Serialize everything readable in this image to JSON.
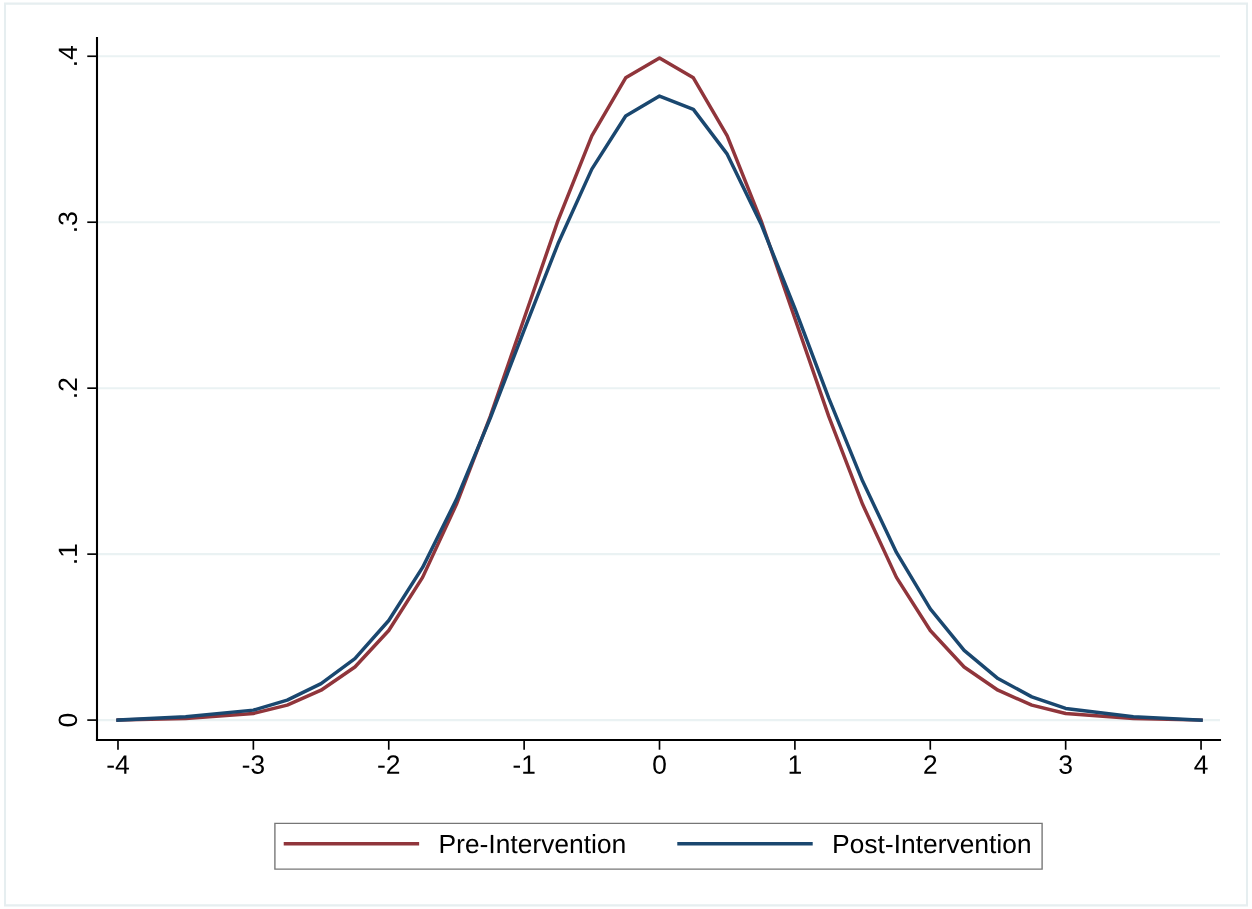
{
  "chart_data": {
    "type": "line",
    "x": [
      -4,
      -3.5,
      -3,
      -2.75,
      -2.5,
      -2.25,
      -2,
      -1.75,
      -1.5,
      -1.25,
      -1,
      -0.75,
      -0.5,
      -0.25,
      0,
      0.25,
      0.5,
      0.75,
      1,
      1.25,
      1.5,
      1.75,
      2,
      2.25,
      2.5,
      2.75,
      3,
      3.5,
      4
    ],
    "series": [
      {
        "name": "Pre-Intervention",
        "color": "#90353b",
        "values": [
          0.0,
          0.001,
          0.004,
          0.009,
          0.018,
          0.032,
          0.054,
          0.086,
          0.13,
          0.183,
          0.242,
          0.301,
          0.352,
          0.387,
          0.399,
          0.387,
          0.352,
          0.301,
          0.242,
          0.183,
          0.13,
          0.086,
          0.054,
          0.032,
          0.018,
          0.009,
          0.004,
          0.001,
          0.0
        ]
      },
      {
        "name": "Post-Intervention",
        "color": "#1a476f",
        "values": [
          0.0,
          0.002,
          0.006,
          0.012,
          0.022,
          0.037,
          0.06,
          0.092,
          0.133,
          0.182,
          0.235,
          0.287,
          0.332,
          0.364,
          0.376,
          0.368,
          0.341,
          0.299,
          0.248,
          0.194,
          0.144,
          0.101,
          0.067,
          0.042,
          0.025,
          0.014,
          0.007,
          0.002,
          0.0
        ]
      }
    ],
    "xlim": [
      -4.155,
      4.14
    ],
    "xticks": [
      -4,
      -3,
      -2,
      -1,
      0,
      1,
      2,
      3,
      4
    ],
    "ylim": [
      -0.012,
      0.411
    ],
    "yticks": [
      0,
      {
        "value": 0.1,
        "label": ".1"
      },
      {
        "value": 0.2,
        "label": ".2"
      },
      {
        "value": 0.3,
        "label": ".3"
      },
      {
        "value": 0.4,
        "label": ".4"
      }
    ],
    "grid": "y",
    "legend": "bottom",
    "marker": "none",
    "line_style": "solid"
  }
}
